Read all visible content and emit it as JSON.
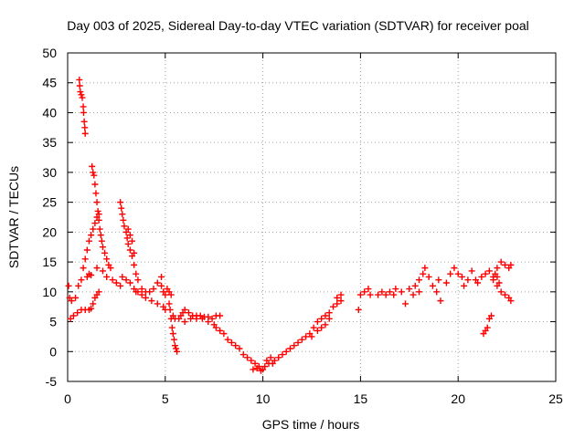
{
  "chart_data": {
    "type": "scatter",
    "title": "Day 003 of 2025, Sidereal Day-to-day VTEC variation (SDTVAR) for receiver poal",
    "xlabel": "GPS time / hours",
    "ylabel": "SDTVAR / TECUs",
    "xlim": [
      0,
      25
    ],
    "ylim": [
      -5,
      50
    ],
    "xticks": [
      0,
      5,
      10,
      15,
      20,
      25
    ],
    "yticks": [
      -5,
      0,
      5,
      10,
      15,
      20,
      25,
      30,
      35,
      40,
      45,
      50
    ],
    "grid": true,
    "marker": "+",
    "color": "#ff0000",
    "series": [
      {
        "name": "SDTVAR",
        "points": [
          [
            0.05,
            11.0
          ],
          [
            0.1,
            9.0
          ],
          [
            0.15,
            5.5
          ],
          [
            0.2,
            8.5
          ],
          [
            0.3,
            6.0
          ],
          [
            0.4,
            9.0
          ],
          [
            0.5,
            6.5
          ],
          [
            0.55,
            11.0
          ],
          [
            0.6,
            45.5
          ],
          [
            0.62,
            44.5
          ],
          [
            0.65,
            43.5
          ],
          [
            0.7,
            43.0
          ],
          [
            0.75,
            42.5
          ],
          [
            0.8,
            41.0
          ],
          [
            0.82,
            40.0
          ],
          [
            0.85,
            38.5
          ],
          [
            0.88,
            37.5
          ],
          [
            0.9,
            36.5
          ],
          [
            0.7,
            7.0
          ],
          [
            0.9,
            7.0
          ],
          [
            1.1,
            7.0
          ],
          [
            1.2,
            7.2
          ],
          [
            0.7,
            12.0
          ],
          [
            0.8,
            14.0
          ],
          [
            0.9,
            15.5
          ],
          [
            1.0,
            17.0
          ],
          [
            1.1,
            18.5
          ],
          [
            1.2,
            19.5
          ],
          [
            1.3,
            20.5
          ],
          [
            1.4,
            21.5
          ],
          [
            1.5,
            22.5
          ],
          [
            1.6,
            23.0
          ],
          [
            1.0,
            12.5
          ],
          [
            1.1,
            13.0
          ],
          [
            1.2,
            12.8
          ],
          [
            1.25,
            31.0
          ],
          [
            1.3,
            30.0
          ],
          [
            1.35,
            29.5
          ],
          [
            1.4,
            28.0
          ],
          [
            1.45,
            26.5
          ],
          [
            1.5,
            25.0
          ],
          [
            1.55,
            23.5
          ],
          [
            1.6,
            22.0
          ],
          [
            1.65,
            20.5
          ],
          [
            1.7,
            19.5
          ],
          [
            1.75,
            18.5
          ],
          [
            1.8,
            17.5
          ],
          [
            1.9,
            16.5
          ],
          [
            2.0,
            15.5
          ],
          [
            2.1,
            14.5
          ],
          [
            2.2,
            14.0
          ],
          [
            1.3,
            8.0
          ],
          [
            1.4,
            9.0
          ],
          [
            1.5,
            9.5
          ],
          [
            1.6,
            10.0
          ],
          [
            1.5,
            14.0
          ],
          [
            1.8,
            13.5
          ],
          [
            2.0,
            12.5
          ],
          [
            2.3,
            12.0
          ],
          [
            2.5,
            11.5
          ],
          [
            2.7,
            11.0
          ],
          [
            2.7,
            25.0
          ],
          [
            2.75,
            24.0
          ],
          [
            2.8,
            23.0
          ],
          [
            2.85,
            22.0
          ],
          [
            2.9,
            21.0
          ],
          [
            3.0,
            20.0
          ],
          [
            3.05,
            19.0
          ],
          [
            3.1,
            18.0
          ],
          [
            3.2,
            17.0
          ],
          [
            3.3,
            16.0
          ],
          [
            3.4,
            14.5
          ],
          [
            3.5,
            13.0
          ],
          [
            3.6,
            12.0
          ],
          [
            3.1,
            20.5
          ],
          [
            3.2,
            19.5
          ],
          [
            3.3,
            18.5
          ],
          [
            3.4,
            16.5
          ],
          [
            2.8,
            12.5
          ],
          [
            3.0,
            12.0
          ],
          [
            3.2,
            11.5
          ],
          [
            3.4,
            10.5
          ],
          [
            3.6,
            10.0
          ],
          [
            3.8,
            10.5
          ],
          [
            4.0,
            10.0
          ],
          [
            4.2,
            10.0
          ],
          [
            4.4,
            10.5
          ],
          [
            4.6,
            11.5
          ],
          [
            4.8,
            12.5
          ],
          [
            3.5,
            10.0
          ],
          [
            3.8,
            9.5
          ],
          [
            4.0,
            9.0
          ],
          [
            4.3,
            8.5
          ],
          [
            4.6,
            8.0
          ],
          [
            4.9,
            7.5
          ],
          [
            5.0,
            7.0
          ],
          [
            4.8,
            11.0
          ],
          [
            4.9,
            10.0
          ],
          [
            5.0,
            9.5
          ],
          [
            5.1,
            10.5
          ],
          [
            5.2,
            10.0
          ],
          [
            5.3,
            9.5
          ],
          [
            5.2,
            8.0
          ],
          [
            5.25,
            7.0
          ],
          [
            5.3,
            5.5
          ],
          [
            5.35,
            4.0
          ],
          [
            5.4,
            3.0
          ],
          [
            5.45,
            2.0
          ],
          [
            5.5,
            1.0
          ],
          [
            5.55,
            0.5
          ],
          [
            5.6,
            0.0
          ],
          [
            5.4,
            6.0
          ],
          [
            5.5,
            5.5
          ],
          [
            5.7,
            5.5
          ],
          [
            5.8,
            6.0
          ],
          [
            5.9,
            6.5
          ],
          [
            6.0,
            7.0
          ],
          [
            6.2,
            6.5
          ],
          [
            6.4,
            6.0
          ],
          [
            6.6,
            6.0
          ],
          [
            6.8,
            6.0
          ],
          [
            7.0,
            5.8
          ],
          [
            7.2,
            5.8
          ],
          [
            7.4,
            5.5
          ],
          [
            7.6,
            6.0
          ],
          [
            7.8,
            6.0
          ],
          [
            6.0,
            5.0
          ],
          [
            6.3,
            5.5
          ],
          [
            6.6,
            5.5
          ],
          [
            6.9,
            5.5
          ],
          [
            7.2,
            5.0
          ],
          [
            7.5,
            4.5
          ],
          [
            7.6,
            4.0
          ],
          [
            7.8,
            3.5
          ],
          [
            8.0,
            3.0
          ],
          [
            8.2,
            2.0
          ],
          [
            8.4,
            1.5
          ],
          [
            8.6,
            1.0
          ],
          [
            8.8,
            0.5
          ],
          [
            9.0,
            -0.5
          ],
          [
            9.2,
            -1.0
          ],
          [
            9.4,
            -1.5
          ],
          [
            9.6,
            -2.0
          ],
          [
            9.8,
            -2.5
          ],
          [
            10.0,
            -3.0
          ],
          [
            9.5,
            -3.0
          ],
          [
            9.7,
            -2.8
          ],
          [
            9.9,
            -3.2
          ],
          [
            10.1,
            -2.5
          ],
          [
            10.3,
            -2.0
          ],
          [
            10.5,
            -2.0
          ],
          [
            10.2,
            -1.5
          ],
          [
            10.4,
            -1.0
          ],
          [
            10.6,
            -1.5
          ],
          [
            10.8,
            -1.0
          ],
          [
            11.0,
            -0.5
          ],
          [
            11.2,
            0.0
          ],
          [
            11.4,
            0.5
          ],
          [
            11.6,
            1.0
          ],
          [
            11.8,
            1.5
          ],
          [
            12.0,
            2.0
          ],
          [
            12.2,
            2.5
          ],
          [
            12.4,
            3.0
          ],
          [
            12.6,
            4.0
          ],
          [
            12.8,
            5.0
          ],
          [
            13.0,
            5.5
          ],
          [
            13.2,
            6.0
          ],
          [
            13.4,
            6.5
          ],
          [
            13.6,
            7.5
          ],
          [
            13.8,
            8.0
          ],
          [
            14.0,
            8.5
          ],
          [
            12.5,
            2.5
          ],
          [
            12.8,
            3.5
          ],
          [
            13.0,
            4.0
          ],
          [
            13.2,
            4.5
          ],
          [
            13.4,
            5.5
          ],
          [
            13.8,
            9.0
          ],
          [
            14.0,
            9.5
          ],
          [
            14.9,
            7.0
          ],
          [
            15.0,
            9.5
          ],
          [
            15.2,
            10.0
          ],
          [
            15.4,
            10.5
          ],
          [
            15.5,
            9.5
          ],
          [
            15.9,
            9.5
          ],
          [
            16.1,
            10.0
          ],
          [
            16.3,
            9.5
          ],
          [
            16.5,
            10.0
          ],
          [
            16.7,
            9.5
          ],
          [
            16.8,
            10.5
          ],
          [
            17.1,
            10.0
          ],
          [
            17.3,
            8.0
          ],
          [
            17.5,
            10.5
          ],
          [
            17.7,
            9.5
          ],
          [
            17.8,
            11.0
          ],
          [
            18.0,
            10.0
          ],
          [
            18.0,
            12.0
          ],
          [
            18.2,
            13.0
          ],
          [
            18.3,
            14.0
          ],
          [
            18.5,
            12.5
          ],
          [
            18.7,
            11.0
          ],
          [
            18.9,
            10.0
          ],
          [
            19.0,
            12.0
          ],
          [
            19.1,
            8.5
          ],
          [
            19.4,
            11.5
          ],
          [
            19.6,
            13.0
          ],
          [
            19.8,
            14.0
          ],
          [
            20.0,
            13.0
          ],
          [
            20.2,
            12.5
          ],
          [
            20.3,
            11.0
          ],
          [
            20.5,
            12.0
          ],
          [
            20.7,
            13.5
          ],
          [
            20.9,
            12.0
          ],
          [
            21.0,
            11.5
          ],
          [
            21.2,
            12.5
          ],
          [
            21.4,
            13.0
          ],
          [
            21.6,
            13.5
          ],
          [
            21.8,
            12.5
          ],
          [
            21.9,
            13.0
          ],
          [
            21.3,
            3.0
          ],
          [
            21.4,
            3.5
          ],
          [
            21.5,
            4.0
          ],
          [
            21.6,
            5.5
          ],
          [
            21.7,
            6.0
          ],
          [
            22.0,
            14.0
          ],
          [
            22.2,
            15.0
          ],
          [
            22.4,
            14.5
          ],
          [
            22.6,
            14.0
          ],
          [
            22.7,
            14.5
          ],
          [
            22.0,
            11.0
          ],
          [
            22.2,
            10.0
          ],
          [
            22.4,
            9.5
          ],
          [
            22.6,
            9.0
          ],
          [
            22.7,
            8.5
          ],
          [
            21.8,
            12.0
          ],
          [
            22.0,
            12.5
          ],
          [
            22.1,
            11.5
          ]
        ]
      }
    ]
  }
}
